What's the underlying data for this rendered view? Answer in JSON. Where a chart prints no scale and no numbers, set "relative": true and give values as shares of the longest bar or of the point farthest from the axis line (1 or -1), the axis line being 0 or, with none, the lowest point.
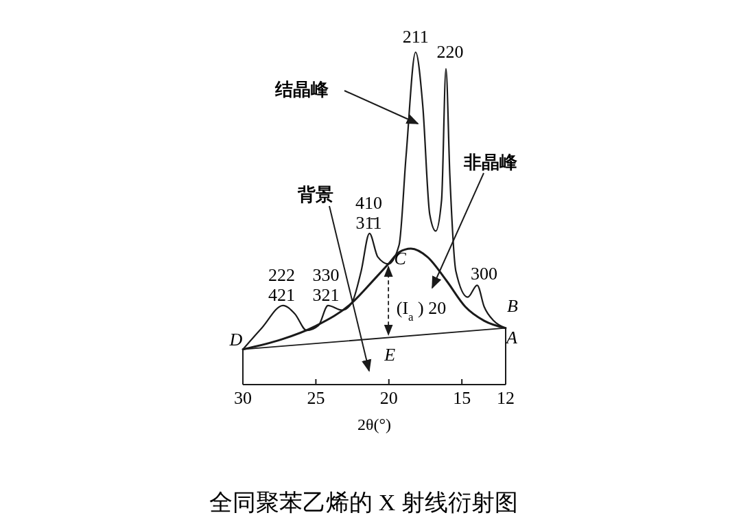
{
  "chart_data": {
    "type": "line",
    "title": "全同聚苯乙烯的 X 射线衍射图",
    "xlabel": "2θ(°)",
    "relative": true,
    "xlim": [
      30,
      12
    ],
    "xticks": [
      30,
      25,
      20,
      15,
      12
    ],
    "grid": false,
    "marker": "none",
    "series": [
      {
        "color": "#1a1a1a",
        "x": [
          30,
          28.71,
          27.25,
          26.44,
          25.63,
          24.82,
          24.17,
          23.2,
          22.55,
          21.9,
          21.33,
          20.76,
          20.03,
          19.3,
          18.82,
          18.17,
          17.68,
          17.2,
          16.79,
          16.39,
          16.09,
          15.82,
          15.41,
          14.6,
          13.95,
          13.47,
          12.82,
          12
        ],
        "values": [
          0.106,
          0.17,
          0.238,
          0.213,
          0.163,
          0.178,
          0.238,
          0.224,
          0.245,
          0.341,
          0.455,
          0.384,
          0.363,
          0.42,
          0.689,
          1,
          0.84,
          0.512,
          0.462,
          0.555,
          0.95,
          0.626,
          0.341,
          0.263,
          0.299,
          0.234,
          0.192,
          0.17
        ]
      },
      {
        "color": "#1a1a1a",
        "x": [
          30,
          27.41,
          24.98,
          22.55,
          20.93,
          20.03,
          19.3,
          18.49,
          17.36,
          16.06,
          14.76,
          13.47,
          12
        ],
        "values": [
          0.106,
          0.135,
          0.177,
          0.245,
          0.32,
          0.363,
          0.398,
          0.409,
          0.384,
          0.313,
          0.234,
          0.192,
          0.17
        ]
      },
      {
        "color": "#1a1a1a",
        "x": [
          30,
          12
        ],
        "values": [
          0.106,
          0.17
        ]
      }
    ],
    "annotations": [
      {
        "text": "211",
        "x": 18.17,
        "y": 1
      },
      {
        "text": "220",
        "x": 16.09,
        "y": 0.95
      },
      {
        "text": "410\n31̄1",
        "x": 21.33,
        "y": 0.455
      },
      {
        "text": "222\n421",
        "x": 27.25,
        "y": 0.238
      },
      {
        "text": "330\n321",
        "x": 24.17,
        "y": 0.238
      },
      {
        "text": "300",
        "x": 13.95,
        "y": 0.299
      },
      "结晶峰",
      "非晶峰",
      "背景",
      {
        "text": "D",
        "x": 30,
        "y": 0.106
      },
      {
        "text": "C",
        "x": 20.03,
        "y": 0.363
      },
      {
        "text": "B",
        "x": 12,
        "y": 0.17
      },
      {
        "text": "A",
        "x": 12,
        "y": 0.17
      },
      {
        "text": "E",
        "x": 20.03,
        "y": 0.142
      },
      "(I$_{a}$) 20"
    ]
  }
}
